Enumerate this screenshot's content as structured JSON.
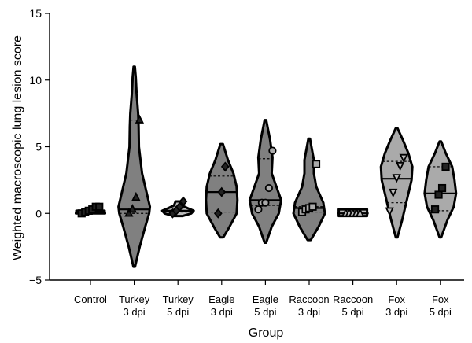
{
  "chart_data": {
    "type": "violin",
    "xlabel": "Group",
    "ylabel": "Weighted macroscopic lung lesion score",
    "ylim": [
      -5,
      15
    ],
    "yticks": [
      "−5",
      "0",
      "5",
      "10",
      "15"
    ],
    "ytick_values": [
      -5,
      0,
      5,
      10,
      15
    ],
    "grid": false,
    "groups": [
      {
        "label": [
          "Control"
        ],
        "fill": "#555555",
        "min": 0.0,
        "max": 0.0,
        "q1": null,
        "median": 0.0,
        "q3": null,
        "shape": [
          [
            0.0,
            1.0
          ]
        ],
        "marker": "square",
        "marker_fill": "#222222",
        "points": [
          0.0,
          0.1,
          0.2,
          0.3,
          0.5,
          0.5
        ]
      },
      {
        "label": [
          "Turkey",
          "3 dpi"
        ],
        "fill": "#808080",
        "min": -4.0,
        "max": 11.0,
        "q1": 0.0,
        "median": 0.3,
        "q3": 7.0,
        "shape": [
          [
            -4.0,
            0.05
          ],
          [
            -2.5,
            0.35
          ],
          [
            -1.0,
            0.7
          ],
          [
            0.0,
            0.95
          ],
          [
            0.5,
            1.0
          ],
          [
            1.5,
            0.8
          ],
          [
            3.0,
            0.5
          ],
          [
            5.0,
            0.3
          ],
          [
            6.5,
            0.28
          ],
          [
            7.5,
            0.25
          ],
          [
            9.0,
            0.15
          ],
          [
            10.2,
            0.1
          ],
          [
            11.0,
            0.04
          ]
        ],
        "marker": "triangle",
        "marker_fill": "#222222",
        "points": [
          0.0,
          0.3,
          1.2,
          7.0
        ]
      },
      {
        "label": [
          "Turkey",
          "5 dpi"
        ],
        "fill": "#bbbbbb",
        "min": -0.2,
        "max": 0.9,
        "q1": 0.1,
        "median": 0.2,
        "q3": 0.4,
        "shape": [
          [
            -0.2,
            0.3
          ],
          [
            0.0,
            0.85
          ],
          [
            0.2,
            1.0
          ],
          [
            0.4,
            0.6
          ],
          [
            0.6,
            0.25
          ],
          [
            0.9,
            0.15
          ]
        ],
        "marker": "diamond",
        "marker_fill": "#222222",
        "points": [
          0.0,
          0.2,
          0.5,
          0.9
        ]
      },
      {
        "label": [
          "Eagle",
          "3 dpi"
        ],
        "fill": "#808080",
        "min": -1.8,
        "max": 5.2,
        "q1": 0.1,
        "median": 1.6,
        "q3": 2.8,
        "shape": [
          [
            -1.8,
            0.1
          ],
          [
            -1.0,
            0.5
          ],
          [
            0.0,
            0.95
          ],
          [
            1.0,
            1.0
          ],
          [
            2.0,
            0.95
          ],
          [
            3.0,
            0.75
          ],
          [
            4.0,
            0.4
          ],
          [
            5.2,
            0.08
          ]
        ],
        "marker": "diamond",
        "marker_fill": "#222222",
        "points": [
          0.0,
          1.6,
          3.5
        ]
      },
      {
        "label": [
          "Eagle",
          "5 dpi"
        ],
        "fill": "#808080",
        "min": -2.2,
        "max": 7.0,
        "q1": 0.6,
        "median": 1.0,
        "q3": 4.1,
        "shape": [
          [
            -2.2,
            0.05
          ],
          [
            -1.0,
            0.4
          ],
          [
            0.0,
            0.85
          ],
          [
            1.0,
            1.0
          ],
          [
            2.0,
            0.7
          ],
          [
            3.0,
            0.4
          ],
          [
            4.2,
            0.45
          ],
          [
            5.5,
            0.3
          ],
          [
            7.0,
            0.05
          ]
        ],
        "marker": "circle",
        "marker_fill": "#aaaaaa",
        "points": [
          0.3,
          0.8,
          0.8,
          1.9,
          4.7
        ]
      },
      {
        "label": [
          "Raccoon",
          "3 dpi"
        ],
        "fill": "#808080",
        "min": -2.0,
        "max": 5.6,
        "q1": 0.1,
        "median": 0.4,
        "q3": 0.5,
        "shape": [
          [
            -2.0,
            0.1
          ],
          [
            -1.0,
            0.6
          ],
          [
            0.0,
            1.0
          ],
          [
            0.8,
            0.9
          ],
          [
            2.0,
            0.45
          ],
          [
            3.0,
            0.3
          ],
          [
            4.0,
            0.3
          ],
          [
            5.6,
            0.05
          ]
        ],
        "marker": "square",
        "marker_fill": "#aaaaaa",
        "points": [
          0.1,
          0.3,
          0.4,
          0.5,
          3.7
        ]
      },
      {
        "label": [
          "Raccoon",
          "5 dpi"
        ],
        "fill": "#bbbbbb",
        "min": -0.2,
        "max": 0.3,
        "q1": 0.0,
        "median": 0.0,
        "q3": 0.1,
        "shape": [
          [
            -0.2,
            1.0
          ],
          [
            0.3,
            1.0
          ]
        ],
        "marker": "triangle",
        "marker_fill": "#bbbbbb",
        "points": [
          0.0,
          0.0,
          0.0,
          0.0,
          0.0
        ]
      },
      {
        "label": [
          "Fox",
          "3 dpi"
        ],
        "fill": "#aaaaaa",
        "min": -1.8,
        "max": 6.4,
        "q1": 0.8,
        "median": 2.6,
        "q3": 3.9,
        "shape": [
          [
            -1.8,
            0.05
          ],
          [
            -0.5,
            0.35
          ],
          [
            0.5,
            0.55
          ],
          [
            1.5,
            0.75
          ],
          [
            2.5,
            0.95
          ],
          [
            3.5,
            1.0
          ],
          [
            4.5,
            0.75
          ],
          [
            5.5,
            0.4
          ],
          [
            6.4,
            0.05
          ]
        ],
        "marker": "inv-triangle",
        "marker_fill": "#bbbbbb",
        "points": [
          0.2,
          1.6,
          2.7,
          3.6,
          4.2
        ]
      },
      {
        "label": [
          "Fox",
          "5 dpi"
        ],
        "fill": "#aaaaaa",
        "min": -1.8,
        "max": 5.4,
        "q1": 0.2,
        "median": 1.5,
        "q3": 3.5,
        "shape": [
          [
            -1.8,
            0.05
          ],
          [
            -0.5,
            0.45
          ],
          [
            0.5,
            0.85
          ],
          [
            1.5,
            1.0
          ],
          [
            2.5,
            0.9
          ],
          [
            3.5,
            0.75
          ],
          [
            4.5,
            0.35
          ],
          [
            5.4,
            0.05
          ]
        ],
        "marker": "square",
        "marker_fill": "#222222",
        "points": [
          0.3,
          1.4,
          1.9,
          3.5
        ]
      }
    ]
  }
}
